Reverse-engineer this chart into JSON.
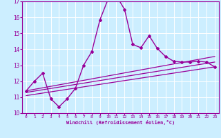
{
  "bg_color": "#cceeff",
  "line_color": "#990099",
  "grid_color": "#ffffff",
  "xlabel": "Windchill (Refroidissement éolien,°C)",
  "xlim": [
    -0.5,
    23.5
  ],
  "ylim": [
    10,
    17
  ],
  "yticks": [
    10,
    11,
    12,
    13,
    14,
    15,
    16,
    17
  ],
  "xticks": [
    0,
    1,
    2,
    3,
    4,
    5,
    6,
    7,
    8,
    9,
    10,
    11,
    12,
    13,
    14,
    15,
    16,
    17,
    18,
    19,
    20,
    21,
    22,
    23
  ],
  "main_x": [
    0,
    1,
    2,
    3,
    4,
    5,
    6,
    7,
    8,
    9,
    10,
    11,
    12,
    13,
    14,
    15,
    16,
    17,
    18,
    19,
    20,
    21,
    22,
    23
  ],
  "main_y": [
    11.4,
    12.0,
    12.5,
    10.9,
    10.4,
    10.9,
    11.55,
    13.0,
    13.85,
    15.85,
    17.15,
    17.35,
    16.5,
    14.3,
    14.1,
    14.85,
    14.05,
    13.55,
    13.25,
    13.2,
    13.2,
    13.25,
    13.2,
    12.9
  ],
  "line2_x": [
    0,
    23
  ],
  "line2_y": [
    11.4,
    13.55
  ],
  "line3_x": [
    0,
    23
  ],
  "line3_y": [
    11.3,
    13.2
  ],
  "line4_x": [
    0,
    23
  ],
  "line4_y": [
    11.1,
    12.9
  ]
}
